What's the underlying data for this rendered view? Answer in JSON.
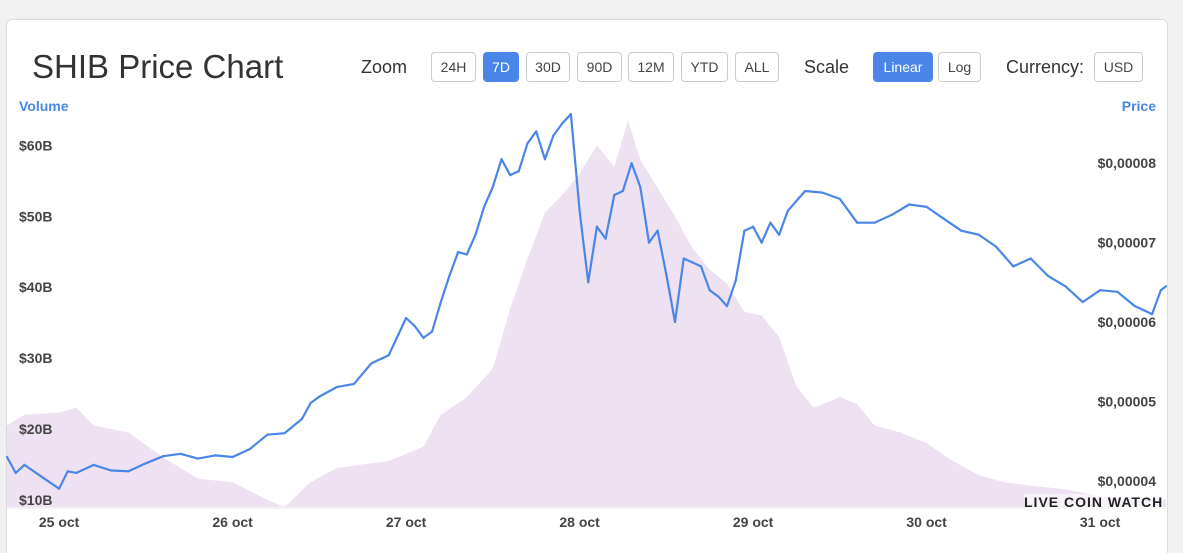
{
  "header": {
    "title": "SHIB Price Chart",
    "zoom_label": "Zoom",
    "zoom_options": [
      "24H",
      "7D",
      "30D",
      "90D",
      "12M",
      "YTD",
      "ALL"
    ],
    "zoom_selected": "7D",
    "scale_label": "Scale",
    "scale_options": [
      "Linear",
      "Log"
    ],
    "scale_selected": "Linear",
    "currency_label": "Currency:",
    "currency_value": "USD"
  },
  "watermark": "LIVE COIN WATCH",
  "colors": {
    "price_line": "#4a86e8",
    "volume_fill": "#ede1f2",
    "accent": "#4a86e8"
  },
  "chart_data": {
    "type": "line",
    "title": "SHIB Price Chart",
    "xlabel": "",
    "left_axis_title": "Volume",
    "right_axis_title": "Price",
    "x_ticks": [
      "25 oct",
      "26 oct",
      "27 oct",
      "28 oct",
      "29 oct",
      "30 oct",
      "31 oct"
    ],
    "volume_ticks": [
      "$10B",
      "$20B",
      "$30B",
      "$40B",
      "$50B",
      "$60B"
    ],
    "volume_tick_values": [
      10,
      20,
      30,
      40,
      50,
      60
    ],
    "price_ticks": [
      "$0,00004",
      "$0,00005",
      "$0,00006",
      "$0,00007",
      "$0,00008"
    ],
    "price_tick_values": [
      4e-05,
      5e-05,
      6e-05,
      7e-05,
      8e-05
    ],
    "volume_ylim": [
      9.0,
      65.0
    ],
    "price_ylim": [
      3.67e-05,
      8.67e-05
    ],
    "xlim_days": [
      24.7,
      31.38
    ],
    "grid": false,
    "series": [
      {
        "name": "Volume",
        "axis": "left",
        "style": "area",
        "x": [
          24.7,
          24.8,
          25.0,
          25.1,
          25.2,
          25.4,
          25.6,
          25.8,
          26.0,
          26.2,
          26.3,
          26.45,
          26.6,
          26.75,
          26.9,
          27.1,
          27.2,
          27.35,
          27.5,
          27.6,
          27.7,
          27.8,
          27.9,
          28.0,
          28.1,
          28.2,
          28.28,
          28.35,
          28.45,
          28.55,
          28.65,
          28.75,
          28.85,
          28.95,
          29.05,
          29.15,
          29.25,
          29.35,
          29.5,
          29.6,
          29.7,
          29.85,
          30.0,
          30.15,
          30.3,
          30.45,
          30.6,
          30.8,
          31.0,
          31.2,
          31.38
        ],
        "values": [
          20.5,
          22.0,
          22.3,
          23.0,
          20.5,
          19.5,
          16.0,
          13.0,
          12.5,
          10.0,
          9.0,
          12.5,
          14.5,
          15.0,
          15.5,
          17.5,
          22.0,
          24.5,
          28.5,
          37.0,
          44.0,
          50.5,
          53.0,
          56.0,
          60.0,
          57.0,
          63.5,
          58.0,
          54.0,
          50.0,
          45.5,
          42.5,
          40.5,
          36.5,
          36.0,
          33.0,
          26.0,
          23.0,
          24.5,
          23.5,
          20.5,
          19.5,
          18.0,
          15.5,
          13.5,
          12.5,
          12.0,
          11.5,
          10.5,
          10.0,
          10.0
        ]
      },
      {
        "name": "Price",
        "axis": "right",
        "style": "line",
        "x": [
          24.7,
          24.75,
          24.8,
          24.9,
          25.0,
          25.05,
          25.1,
          25.2,
          25.3,
          25.4,
          25.5,
          25.6,
          25.7,
          25.8,
          25.9,
          26.0,
          26.1,
          26.2,
          26.3,
          26.4,
          26.45,
          26.5,
          26.6,
          26.7,
          26.8,
          26.9,
          27.0,
          27.05,
          27.1,
          27.15,
          27.2,
          27.25,
          27.3,
          27.35,
          27.4,
          27.45,
          27.5,
          27.55,
          27.6,
          27.65,
          27.7,
          27.75,
          27.8,
          27.85,
          27.9,
          27.95,
          28.0,
          28.05,
          28.1,
          28.15,
          28.2,
          28.25,
          28.3,
          28.35,
          28.4,
          28.45,
          28.5,
          28.55,
          28.6,
          28.65,
          28.7,
          28.75,
          28.8,
          28.85,
          28.9,
          28.95,
          29.0,
          29.05,
          29.1,
          29.15,
          29.2,
          29.3,
          29.4,
          29.5,
          29.6,
          29.7,
          29.8,
          29.9,
          30.0,
          30.1,
          30.2,
          30.3,
          30.4,
          30.5,
          30.6,
          30.7,
          30.8,
          30.9,
          31.0,
          31.1,
          31.2,
          31.3,
          31.35,
          31.38
        ],
        "values": [
          4.3e-05,
          4.1e-05,
          4.2e-05,
          4.05e-05,
          3.9e-05,
          4.12e-05,
          4.1e-05,
          4.2e-05,
          4.13e-05,
          4.12e-05,
          4.22e-05,
          4.31e-05,
          4.34e-05,
          4.28e-05,
          4.32e-05,
          4.3e-05,
          4.4e-05,
          4.58e-05,
          4.6e-05,
          4.78e-05,
          4.98e-05,
          5.06e-05,
          5.18e-05,
          5.22e-05,
          5.48e-05,
          5.58e-05,
          6.05e-05,
          5.95e-05,
          5.8e-05,
          5.88e-05,
          6.25e-05,
          6.58e-05,
          6.88e-05,
          6.85e-05,
          7.1e-05,
          7.45e-05,
          7.7e-05,
          8.05e-05,
          7.85e-05,
          7.9e-05,
          8.25e-05,
          8.4e-05,
          8.05e-05,
          8.35e-05,
          8.5e-05,
          8.62e-05,
          7.4e-05,
          6.5e-05,
          7.2e-05,
          7.05e-05,
          7.6e-05,
          7.65e-05,
          8e-05,
          7.7e-05,
          7e-05,
          7.15e-05,
          6.6e-05,
          6e-05,
          6.8e-05,
          6.75e-05,
          6.7e-05,
          6.4e-05,
          6.32e-05,
          6.2e-05,
          6.52e-05,
          7.15e-05,
          7.2e-05,
          7e-05,
          7.25e-05,
          7.1e-05,
          7.4e-05,
          7.65e-05,
          7.63e-05,
          7.55e-05,
          7.25e-05,
          7.25e-05,
          7.35e-05,
          7.48e-05,
          7.45e-05,
          7.3e-05,
          7.15e-05,
          7.1e-05,
          6.95e-05,
          6.7e-05,
          6.8e-05,
          6.58e-05,
          6.45e-05,
          6.25e-05,
          6.4e-05,
          6.38e-05,
          6.2e-05,
          6.1e-05,
          6.4e-05,
          6.45e-05
        ]
      }
    ]
  }
}
